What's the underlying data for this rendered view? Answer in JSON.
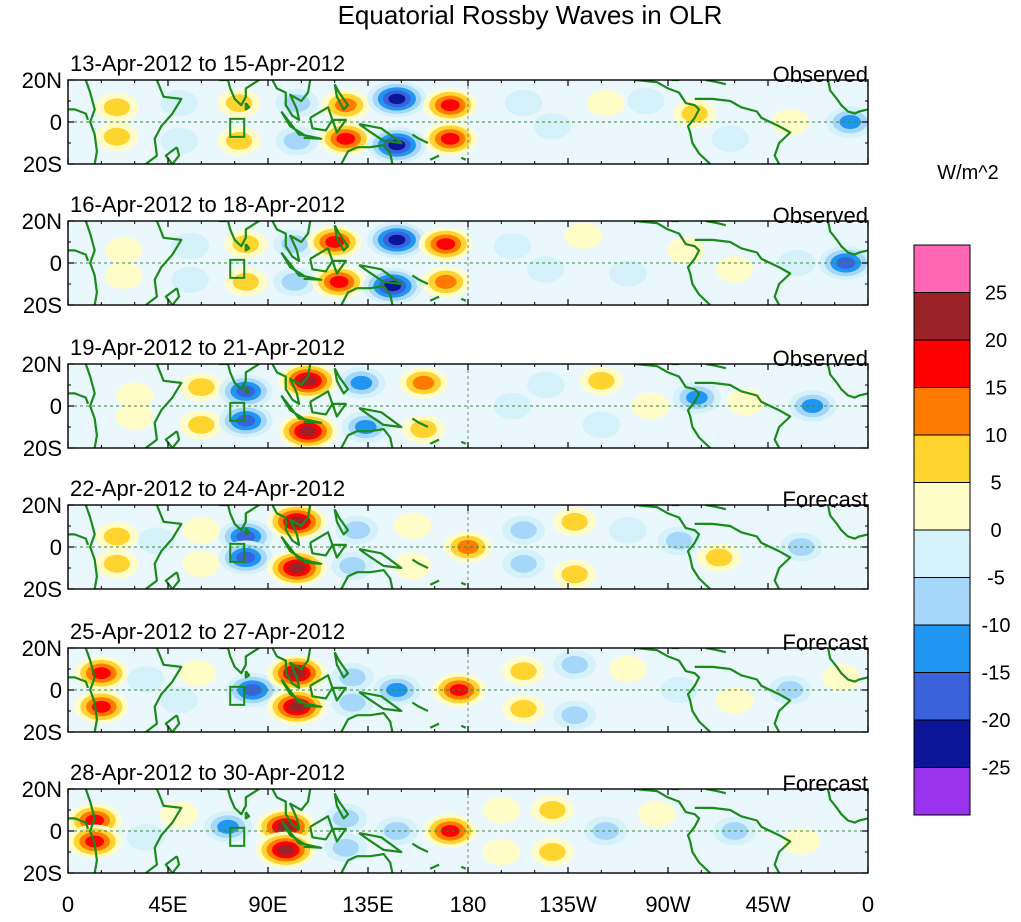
{
  "chart_data": {
    "type": "heatmap",
    "title": "Equatorial Rossby Waves in OLR",
    "units": "W/m^2",
    "colors": {
      "pink": "#ff66b3",
      "c25": "#9b2226",
      "c20": "#ff0000",
      "c15": "#ff7a00",
      "c10": "#ffd42e",
      "c5": "#fffcc8",
      "c0": "#d5f2fb",
      "cm5": "#a6d6fa",
      "cm10": "#1f96f2",
      "cm15": "#3a62db",
      "cm20": "#0c1598",
      "cm25": "#9a33ee",
      "coast": "#1a8a1a",
      "equator": "#3a8a3a"
    },
    "colorbar": {
      "levels": [
        "25",
        "20",
        "15",
        "10",
        "5",
        "0",
        "-5",
        "-10",
        "-15",
        "-20",
        "-25"
      ],
      "values": [
        25,
        20,
        15,
        10,
        5,
        0,
        -5,
        -10,
        -15,
        -20,
        -25
      ],
      "swatches": [
        "pink",
        "c25",
        "c20",
        "c15",
        "c10",
        "c5",
        "c0",
        "cm5",
        "cm10",
        "cm15",
        "cm20",
        "cm25"
      ]
    },
    "lon_ticks": [
      "0",
      "45E",
      "90E",
      "135E",
      "180",
      "135W",
      "90W",
      "45W",
      "0"
    ],
    "lon_values": [
      0,
      45,
      90,
      135,
      180,
      225,
      270,
      315,
      360
    ],
    "lat_ticks": [
      "20N",
      "0",
      "20S"
    ],
    "lat_values": [
      20,
      0,
      -20
    ],
    "xlim": [
      0,
      360
    ],
    "ylim": [
      -20,
      20
    ],
    "panels": [
      {
        "dates": "13-Apr-2012 to 15-Apr-2012",
        "kind": "Observed",
        "anomalies": [
          {
            "lon": 22,
            "lat": 7,
            "v": 10
          },
          {
            "lon": 22,
            "lat": -7,
            "v": 10
          },
          {
            "lon": 50,
            "lat": 9,
            "v": -5
          },
          {
            "lon": 50,
            "lat": -9,
            "v": -5
          },
          {
            "lon": 77,
            "lat": 9,
            "v": 10
          },
          {
            "lon": 77,
            "lat": -9,
            "v": 10
          },
          {
            "lon": 103,
            "lat": 9,
            "v": -10
          },
          {
            "lon": 103,
            "lat": -9,
            "v": -10
          },
          {
            "lon": 125,
            "lat": 8,
            "v": 15
          },
          {
            "lon": 125,
            "lat": -8,
            "v": 20
          },
          {
            "lon": 148,
            "lat": 11,
            "v": -25
          },
          {
            "lon": 148,
            "lat": -11,
            "v": -25
          },
          {
            "lon": 172,
            "lat": 8,
            "v": 20
          },
          {
            "lon": 172,
            "lat": -8,
            "v": 20
          },
          {
            "lon": 205,
            "lat": 9,
            "v": -5
          },
          {
            "lon": 218,
            "lat": -2,
            "v": -5
          },
          {
            "lon": 242,
            "lat": 9,
            "v": 5
          },
          {
            "lon": 260,
            "lat": 10,
            "v": -5
          },
          {
            "lon": 282,
            "lat": 4,
            "v": 10
          },
          {
            "lon": 298,
            "lat": -8,
            "v": -5
          },
          {
            "lon": 325,
            "lat": 0,
            "v": 5
          },
          {
            "lon": 352,
            "lat": 0,
            "v": -15
          }
        ]
      },
      {
        "dates": "16-Apr-2012 to 18-Apr-2012",
        "kind": "Observed",
        "anomalies": [
          {
            "lon": 25,
            "lat": 6,
            "v": 5
          },
          {
            "lon": 25,
            "lat": -6,
            "v": 5
          },
          {
            "lon": 55,
            "lat": 8,
            "v": -5
          },
          {
            "lon": 55,
            "lat": -8,
            "v": -5
          },
          {
            "lon": 80,
            "lat": 9,
            "v": 10
          },
          {
            "lon": 80,
            "lat": -9,
            "v": 10
          },
          {
            "lon": 102,
            "lat": 9,
            "v": -10
          },
          {
            "lon": 102,
            "lat": -9,
            "v": -10
          },
          {
            "lon": 120,
            "lat": 10,
            "v": 20
          },
          {
            "lon": 122,
            "lat": -9,
            "v": 20
          },
          {
            "lon": 148,
            "lat": 11,
            "v": -25
          },
          {
            "lon": 146,
            "lat": -11,
            "v": -25
          },
          {
            "lon": 170,
            "lat": 9,
            "v": 20
          },
          {
            "lon": 170,
            "lat": -9,
            "v": 15
          },
          {
            "lon": 200,
            "lat": 8,
            "v": -5
          },
          {
            "lon": 215,
            "lat": -3,
            "v": -5
          },
          {
            "lon": 232,
            "lat": 13,
            "v": 5
          },
          {
            "lon": 252,
            "lat": -5,
            "v": -5
          },
          {
            "lon": 278,
            "lat": 6,
            "v": 5
          },
          {
            "lon": 300,
            "lat": -3,
            "v": 5
          },
          {
            "lon": 328,
            "lat": 0,
            "v": -5
          },
          {
            "lon": 350,
            "lat": 0,
            "v": -20
          }
        ]
      },
      {
        "dates": "19-Apr-2012 to 21-Apr-2012",
        "kind": "Observed",
        "anomalies": [
          {
            "lon": 30,
            "lat": 5,
            "v": 5
          },
          {
            "lon": 30,
            "lat": -5,
            "v": 5
          },
          {
            "lon": 60,
            "lat": 9,
            "v": 10
          },
          {
            "lon": 60,
            "lat": -9,
            "v": 10
          },
          {
            "lon": 80,
            "lat": 7,
            "v": -20
          },
          {
            "lon": 80,
            "lat": -7,
            "v": -20
          },
          {
            "lon": 108,
            "lat": 12,
            "v": 25
          },
          {
            "lon": 108,
            "lat": -12,
            "v": 25
          },
          {
            "lon": 132,
            "lat": 11,
            "v": -15
          },
          {
            "lon": 134,
            "lat": -10,
            "v": -15
          },
          {
            "lon": 160,
            "lat": 11,
            "v": 15
          },
          {
            "lon": 160,
            "lat": -11,
            "v": 10
          },
          {
            "lon": 200,
            "lat": 0,
            "v": -5
          },
          {
            "lon": 215,
            "lat": 10,
            "v": -5
          },
          {
            "lon": 240,
            "lat": 12,
            "v": 10
          },
          {
            "lon": 240,
            "lat": -9,
            "v": -5
          },
          {
            "lon": 262,
            "lat": 0,
            "v": 5
          },
          {
            "lon": 283,
            "lat": 4,
            "v": -15
          },
          {
            "lon": 305,
            "lat": 2,
            "v": 5
          },
          {
            "lon": 335,
            "lat": 0,
            "v": -15
          }
        ]
      },
      {
        "dates": "22-Apr-2012 to 24-Apr-2012",
        "kind": "Forecast",
        "anomalies": [
          {
            "lon": 22,
            "lat": 5,
            "v": 10
          },
          {
            "lon": 22,
            "lat": -8,
            "v": 10
          },
          {
            "lon": 40,
            "lat": 3,
            "v": -5
          },
          {
            "lon": 60,
            "lat": 8,
            "v": 5
          },
          {
            "lon": 60,
            "lat": -8,
            "v": 5
          },
          {
            "lon": 80,
            "lat": 5,
            "v": -20
          },
          {
            "lon": 80,
            "lat": -5,
            "v": -20
          },
          {
            "lon": 103,
            "lat": 12,
            "v": 25
          },
          {
            "lon": 103,
            "lat": -10,
            "v": 25
          },
          {
            "lon": 130,
            "lat": 8,
            "v": -10
          },
          {
            "lon": 128,
            "lat": -9,
            "v": -10
          },
          {
            "lon": 155,
            "lat": 10,
            "v": 5
          },
          {
            "lon": 155,
            "lat": -9,
            "v": 5
          },
          {
            "lon": 180,
            "lat": 0,
            "v": 15
          },
          {
            "lon": 205,
            "lat": 8,
            "v": -10
          },
          {
            "lon": 205,
            "lat": -8,
            "v": -10
          },
          {
            "lon": 228,
            "lat": 12,
            "v": 10
          },
          {
            "lon": 228,
            "lat": -13,
            "v": 10
          },
          {
            "lon": 252,
            "lat": 8,
            "v": -5
          },
          {
            "lon": 275,
            "lat": 3,
            "v": -10
          },
          {
            "lon": 293,
            "lat": -5,
            "v": 10
          },
          {
            "lon": 330,
            "lat": 0,
            "v": -10
          }
        ]
      },
      {
        "dates": "25-Apr-2012 to 27-Apr-2012",
        "kind": "Forecast",
        "anomalies": [
          {
            "lon": 15,
            "lat": 8,
            "v": 20
          },
          {
            "lon": 15,
            "lat": -8,
            "v": 20
          },
          {
            "lon": 35,
            "lat": 5,
            "v": -5
          },
          {
            "lon": 50,
            "lat": -5,
            "v": -5
          },
          {
            "lon": 58,
            "lat": 8,
            "v": 5
          },
          {
            "lon": 83,
            "lat": 0,
            "v": -20
          },
          {
            "lon": 103,
            "lat": 8,
            "v": 25
          },
          {
            "lon": 103,
            "lat": -8,
            "v": 25
          },
          {
            "lon": 128,
            "lat": 6,
            "v": -10
          },
          {
            "lon": 128,
            "lat": -6,
            "v": -10
          },
          {
            "lon": 148,
            "lat": 0,
            "v": -15
          },
          {
            "lon": 176,
            "lat": 0,
            "v": 20
          },
          {
            "lon": 205,
            "lat": 9,
            "v": 10
          },
          {
            "lon": 205,
            "lat": -9,
            "v": 10
          },
          {
            "lon": 228,
            "lat": 12,
            "v": -10
          },
          {
            "lon": 228,
            "lat": -12,
            "v": -10
          },
          {
            "lon": 252,
            "lat": 10,
            "v": 5
          },
          {
            "lon": 275,
            "lat": 0,
            "v": -5
          },
          {
            "lon": 300,
            "lat": -5,
            "v": 5
          },
          {
            "lon": 325,
            "lat": 0,
            "v": -10
          },
          {
            "lon": 348,
            "lat": 6,
            "v": 5
          }
        ]
      },
      {
        "dates": "28-Apr-2012 to 30-Apr-2012",
        "kind": "Forecast",
        "anomalies": [
          {
            "lon": 12,
            "lat": 5,
            "v": 20
          },
          {
            "lon": 12,
            "lat": -5,
            "v": 20
          },
          {
            "lon": 35,
            "lat": -3,
            "v": -5
          },
          {
            "lon": 50,
            "lat": 8,
            "v": 5
          },
          {
            "lon": 72,
            "lat": 2,
            "v": -15
          },
          {
            "lon": 98,
            "lat": 2,
            "v": 25
          },
          {
            "lon": 98,
            "lat": -9,
            "v": 25
          },
          {
            "lon": 125,
            "lat": 6,
            "v": -10
          },
          {
            "lon": 125,
            "lat": -8,
            "v": -10
          },
          {
            "lon": 148,
            "lat": 0,
            "v": -10
          },
          {
            "lon": 172,
            "lat": 0,
            "v": 20
          },
          {
            "lon": 195,
            "lat": 10,
            "v": 5
          },
          {
            "lon": 195,
            "lat": -10,
            "v": 5
          },
          {
            "lon": 218,
            "lat": 10,
            "v": 10
          },
          {
            "lon": 218,
            "lat": -10,
            "v": 10
          },
          {
            "lon": 242,
            "lat": 0,
            "v": -10
          },
          {
            "lon": 265,
            "lat": 8,
            "v": 5
          },
          {
            "lon": 300,
            "lat": 0,
            "v": -10
          },
          {
            "lon": 330,
            "lat": -5,
            "v": 5
          }
        ]
      }
    ]
  }
}
